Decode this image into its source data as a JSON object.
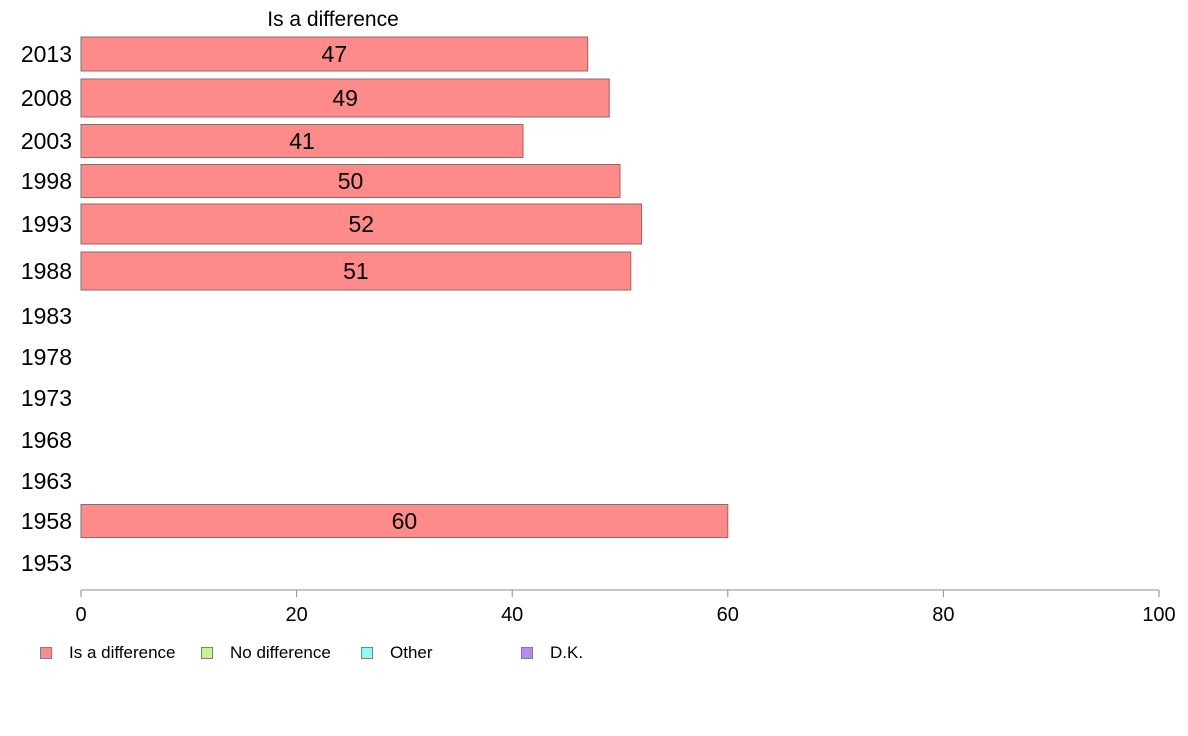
{
  "chart_data": {
    "type": "bar",
    "orientation": "horizontal",
    "title": "Is a difference",
    "categories": [
      "2013",
      "2008",
      "2003",
      "1998",
      "1993",
      "1988",
      "1983",
      "1978",
      "1973",
      "1968",
      "1963",
      "1958",
      "1953"
    ],
    "series": [
      {
        "name": "Is a difference",
        "values": [
          47,
          49,
          41,
          50,
          52,
          51,
          null,
          null,
          null,
          null,
          null,
          60,
          null
        ],
        "color": "#ff8a8a"
      }
    ],
    "xlim": [
      0,
      100
    ],
    "xticks": [
      0,
      20,
      40,
      60,
      80,
      100
    ],
    "grid": false,
    "legend": {
      "position": "bottom-left",
      "entries": [
        {
          "label": "Is a difference",
          "color": "#ff8a8a"
        },
        {
          "label": "No difference",
          "color": "#c6f58a"
        },
        {
          "label": "Other",
          "color": "#8afafa"
        },
        {
          "label": "D.K.",
          "color": "#b88af5"
        }
      ]
    }
  }
}
